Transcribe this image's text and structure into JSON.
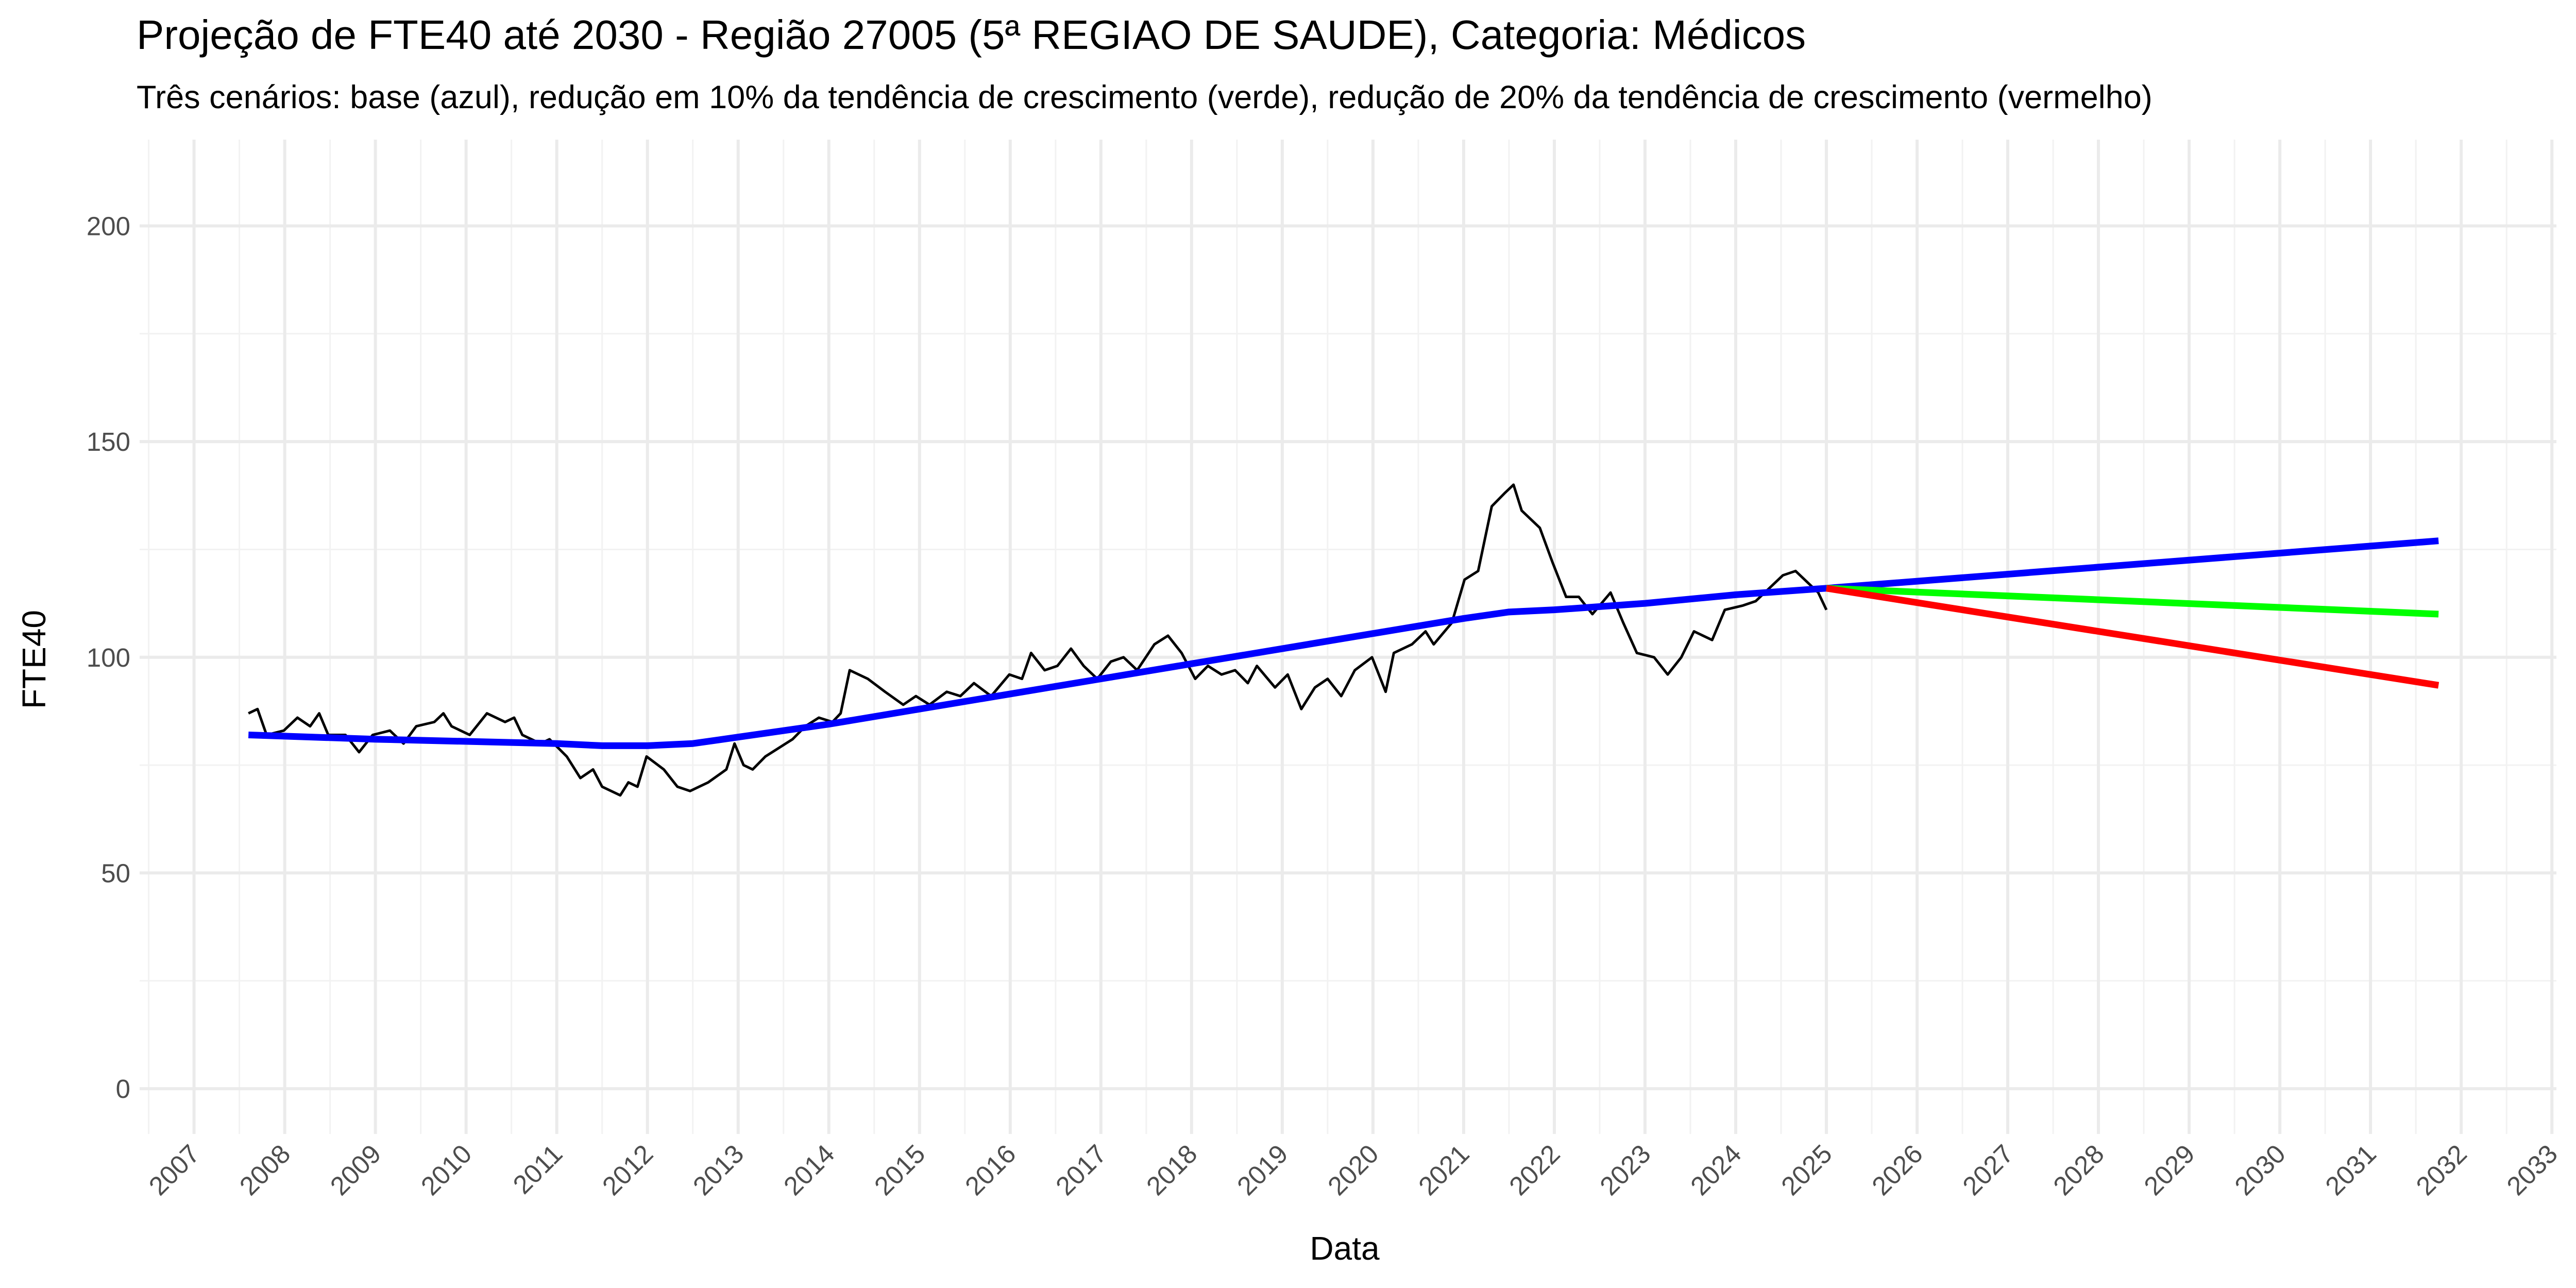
{
  "chart_data": {
    "type": "line",
    "title": "Projeção de FTE40 até 2030 - Região 27005 (5ª REGIAO DE SAUDE), Categoria: Médicos",
    "subtitle": "Três cenários: base (azul), redução em 10% da tendência de crescimento (verde), redução de 20% da tendência de crescimento (vermelho)",
    "xlabel": "Data",
    "ylabel": "FTE40",
    "xlim": [
      2006.4,
      2033.05
    ],
    "ylim": [
      -10.5,
      220
    ],
    "xticks": [
      2007,
      2008,
      2009,
      2010,
      2011,
      2012,
      2013,
      2014,
      2015,
      2016,
      2017,
      2018,
      2019,
      2020,
      2021,
      2022,
      2023,
      2024,
      2025,
      2026,
      2027,
      2028,
      2029,
      2030,
      2031,
      2032,
      2033
    ],
    "yticks": [
      0,
      50,
      100,
      150,
      200
    ],
    "grid": true,
    "series": [
      {
        "color": "#000000",
        "x": [
          2007.6,
          2007.7,
          2007.8,
          2007.99,
          2008.14,
          2008.28,
          2008.38,
          2008.48,
          2008.67,
          2008.82,
          2008.97,
          2009.16,
          2009.31,
          2009.45,
          2009.65,
          2009.75,
          2009.84,
          2010.04,
          2010.23,
          2010.43,
          2010.53,
          2010.62,
          2010.82,
          2010.92,
          2011.11,
          2011.26,
          2011.4,
          2011.5,
          2011.7,
          2011.79,
          2011.89,
          2011.99,
          2012.18,
          2012.33,
          2012.47,
          2012.67,
          2012.87,
          2012.96,
          2013.06,
          2013.16,
          2013.3,
          2013.45,
          2013.6,
          2013.74,
          2013.89,
          2014.04,
          2014.13,
          2014.23,
          2014.43,
          2014.62,
          2014.82,
          2014.96,
          2015.11,
          2015.3,
          2015.45,
          2015.6,
          2015.79,
          2015.99,
          2016.13,
          2016.23,
          2016.38,
          2016.52,
          2016.67,
          2016.81,
          2016.96,
          2017.11,
          2017.25,
          2017.4,
          2017.59,
          2017.74,
          2017.89,
          2018.04,
          2018.18,
          2018.33,
          2018.48,
          2018.62,
          2018.72,
          2018.92,
          2019.06,
          2019.21,
          2019.36,
          2019.5,
          2019.65,
          2019.8,
          2019.99,
          2020.14,
          2020.23,
          2020.43,
          2020.58,
          2020.67,
          2020.87,
          2021.01,
          2021.16,
          2021.31,
          2021.45,
          2021.55,
          2021.64,
          2021.84,
          2021.98,
          2022.13,
          2022.27,
          2022.42,
          2022.62,
          2022.76,
          2022.91,
          2023.1,
          2023.25,
          2023.4,
          2023.54,
          2023.74,
          2023.88,
          2024.08,
          2024.22,
          2024.37,
          2024.52,
          2024.66,
          2024.81,
          2024.91,
          2025.0
        ],
        "values": [
          87,
          88,
          82,
          83,
          86,
          84,
          87,
          82,
          82,
          78,
          82,
          83,
          80,
          84,
          85,
          87,
          84,
          82,
          87,
          85,
          86,
          82,
          80,
          81,
          77,
          72,
          74,
          70,
          68,
          71,
          70,
          77,
          74,
          70,
          69,
          71,
          74,
          80,
          75,
          74,
          77,
          79,
          81,
          84,
          86,
          85,
          87,
          97,
          95,
          92,
          89,
          91,
          89,
          92,
          91,
          94,
          91,
          96,
          95,
          101,
          97,
          98,
          102,
          98,
          95,
          99,
          100,
          97,
          103,
          105,
          101,
          95,
          98,
          96,
          97,
          94,
          98,
          93,
          96,
          88,
          93,
          95,
          91,
          97,
          100,
          92,
          101,
          103,
          106,
          103,
          108,
          118,
          120,
          135,
          138,
          140,
          134,
          130,
          122,
          114,
          114,
          110,
          115,
          108,
          101,
          100,
          96,
          100,
          106,
          104,
          111,
          112,
          113,
          116,
          119,
          120,
          117,
          115,
          111
        ]
      },
      {
        "color": "#0000ff",
        "x": [
          2007.6,
          2009,
          2010,
          2011,
          2011.5,
          2012,
          2012.5,
          2013,
          2014,
          2015,
          2016,
          2017,
          2018,
          2019,
          2020,
          2021,
          2021.5,
          2022,
          2023,
          2024,
          2025,
          2031.75
        ],
        "values": [
          82,
          81,
          80.5,
          80,
          79.5,
          79.5,
          80,
          81.5,
          84.5,
          88,
          91.5,
          95,
          98.5,
          102,
          105.5,
          109,
          110.5,
          111,
          112.5,
          114.5,
          116,
          127
        ]
      },
      {
        "color": "#00ff00",
        "x": [
          2025,
          2031.75
        ],
        "values": [
          116,
          110
        ]
      },
      {
        "color": "#ff0000",
        "x": [
          2025,
          2031.75
        ],
        "values": [
          116,
          93.5
        ]
      }
    ]
  }
}
